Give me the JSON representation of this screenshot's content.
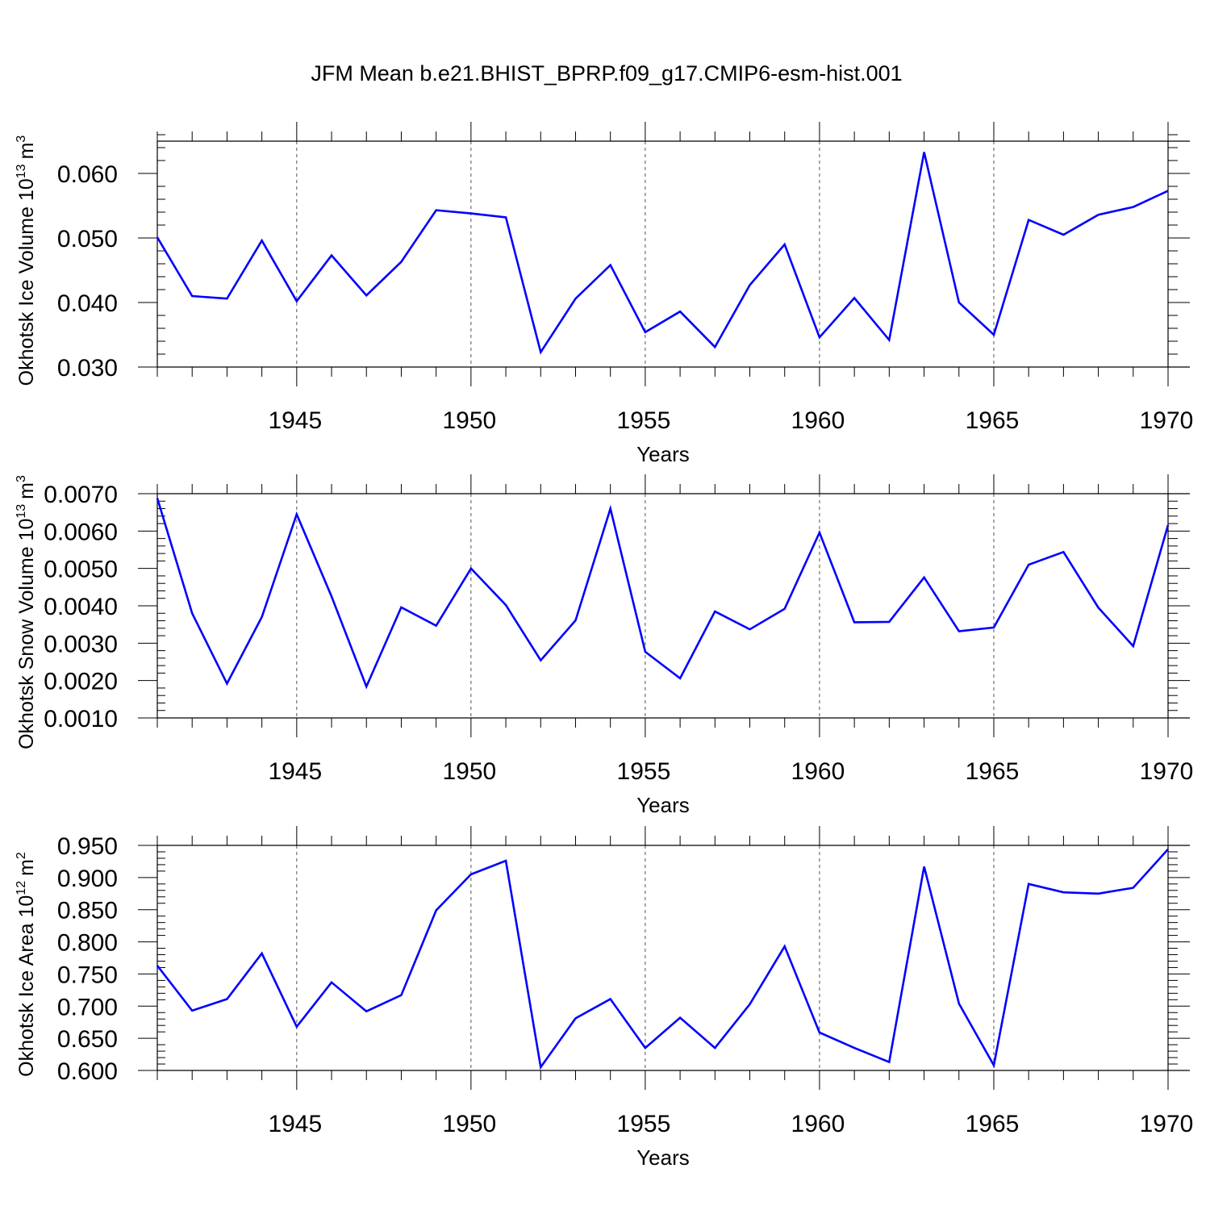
{
  "title": "JFM Mean b.e21.BHIST_BPRP.f09_g17.CMIP6-esm-hist.001",
  "colors": {
    "line": "#0000ff",
    "axis": "#000000",
    "grid": "#555555"
  },
  "chart_data": [
    {
      "type": "line",
      "ylabel": "Okhotsk Ice Volume",
      "ylabel_unit_base": "10",
      "ylabel_unit_exp": "13",
      "ylabel_unit_suffix": "m",
      "ylabel_unit_suffix_exp": "3",
      "xlabel": "Years",
      "xlim": [
        1941,
        1970
      ],
      "ylim": [
        0.03,
        0.065
      ],
      "x_ticks": [
        1945,
        1950,
        1955,
        1960,
        1965,
        1970
      ],
      "x_tick_labels": [
        "1945",
        "1950",
        "1955",
        "1960",
        "1965",
        "1970"
      ],
      "y_ticks": [
        0.03,
        0.04,
        0.05,
        0.06
      ],
      "y_tick_labels": [
        "0.030",
        "0.040",
        "0.050",
        "0.060"
      ],
      "y_minor_step": 0.002,
      "grid": "x-major dashed",
      "x": [
        1941,
        1942,
        1943,
        1944,
        1945,
        1946,
        1947,
        1948,
        1949,
        1950,
        1951,
        1952,
        1953,
        1954,
        1955,
        1956,
        1957,
        1958,
        1959,
        1960,
        1961,
        1962,
        1963,
        1964,
        1965,
        1966,
        1967,
        1968,
        1969,
        1970
      ],
      "values": [
        0.0501,
        0.041,
        0.0406,
        0.0496,
        0.0402,
        0.0473,
        0.0411,
        0.0463,
        0.0543,
        0.0538,
        0.0532,
        0.0323,
        0.0406,
        0.0458,
        0.0354,
        0.0386,
        0.0331,
        0.0427,
        0.049,
        0.0346,
        0.0407,
        0.0342,
        0.0633,
        0.04,
        0.035,
        0.0528,
        0.0505,
        0.0536,
        0.0548,
        0.0573
      ]
    },
    {
      "type": "line",
      "ylabel": "Okhotsk Snow Volume",
      "ylabel_unit_base": "10",
      "ylabel_unit_exp": "13",
      "ylabel_unit_suffix": "m",
      "ylabel_unit_suffix_exp": "3",
      "xlabel": "Years",
      "xlim": [
        1941,
        1970
      ],
      "ylim": [
        0.001,
        0.007
      ],
      "x_ticks": [
        1945,
        1950,
        1955,
        1960,
        1965,
        1970
      ],
      "x_tick_labels": [
        "1945",
        "1950",
        "1955",
        "1960",
        "1965",
        "1970"
      ],
      "y_ticks": [
        0.001,
        0.002,
        0.003,
        0.004,
        0.005,
        0.006,
        0.007
      ],
      "y_tick_labels": [
        "0.0010",
        "0.0020",
        "0.0030",
        "0.0040",
        "0.0050",
        "0.0060",
        "0.0070"
      ],
      "y_minor_step": 0.0002,
      "grid": "x-major dashed",
      "x": [
        1941,
        1942,
        1943,
        1944,
        1945,
        1946,
        1947,
        1948,
        1949,
        1950,
        1951,
        1952,
        1953,
        1954,
        1955,
        1956,
        1957,
        1958,
        1959,
        1960,
        1961,
        1962,
        1963,
        1964,
        1965,
        1966,
        1967,
        1968,
        1969,
        1970
      ],
      "values": [
        0.00688,
        0.0038,
        0.00192,
        0.0037,
        0.00645,
        0.00425,
        0.00184,
        0.00396,
        0.00347,
        0.005,
        0.00402,
        0.00254,
        0.00361,
        0.0066,
        0.00277,
        0.00206,
        0.00385,
        0.00337,
        0.00392,
        0.00596,
        0.00356,
        0.00357,
        0.00476,
        0.00332,
        0.00342,
        0.0051,
        0.00544,
        0.00395,
        0.00292,
        0.00616
      ]
    },
    {
      "type": "line",
      "ylabel": "Okhotsk Ice Area",
      "ylabel_unit_base": "10",
      "ylabel_unit_exp": "12",
      "ylabel_unit_suffix": "m",
      "ylabel_unit_suffix_exp": "2",
      "xlabel": "Years",
      "xlim": [
        1941,
        1970
      ],
      "ylim": [
        0.6,
        0.95
      ],
      "x_ticks": [
        1945,
        1950,
        1955,
        1960,
        1965,
        1970
      ],
      "x_tick_labels": [
        "1945",
        "1950",
        "1955",
        "1960",
        "1965",
        "1970"
      ],
      "y_ticks": [
        0.6,
        0.65,
        0.7,
        0.75,
        0.8,
        0.85,
        0.9,
        0.95
      ],
      "y_tick_labels": [
        "0.600",
        "0.650",
        "0.700",
        "0.750",
        "0.800",
        "0.850",
        "0.900",
        "0.950"
      ],
      "y_minor_step": 0.01,
      "grid": "x-major dashed",
      "x": [
        1941,
        1942,
        1943,
        1944,
        1945,
        1946,
        1947,
        1948,
        1949,
        1950,
        1951,
        1952,
        1953,
        1954,
        1955,
        1956,
        1957,
        1958,
        1959,
        1960,
        1961,
        1962,
        1963,
        1964,
        1965,
        1966,
        1967,
        1968,
        1969,
        1970
      ],
      "values": [
        0.763,
        0.693,
        0.711,
        0.782,
        0.668,
        0.737,
        0.692,
        0.717,
        0.849,
        0.905,
        0.926,
        0.605,
        0.681,
        0.711,
        0.635,
        0.682,
        0.635,
        0.703,
        0.793,
        0.659,
        0.635,
        0.613,
        0.917,
        0.704,
        0.608,
        0.89,
        0.877,
        0.875,
        0.884,
        0.944
      ]
    }
  ]
}
